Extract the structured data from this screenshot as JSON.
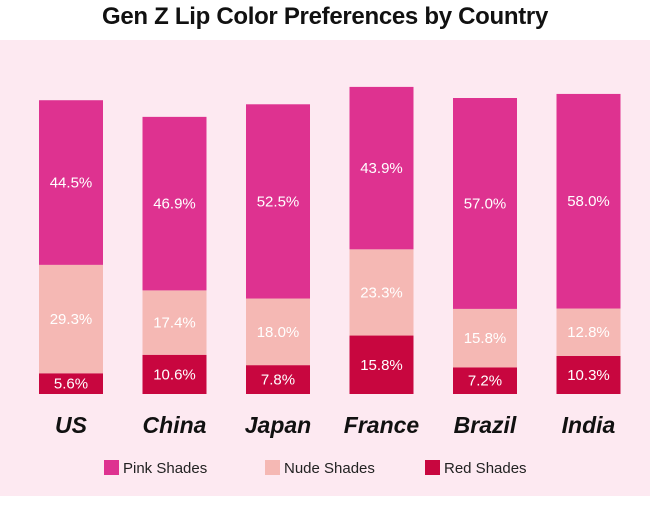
{
  "chart_data": {
    "type": "bar",
    "stacked": true,
    "title": "Gen Z  Lip Color Preferences by Country",
    "categories": [
      "US",
      "China",
      "Japan",
      "France",
      "Brazil",
      "India"
    ],
    "series": [
      {
        "name": "Red Shades",
        "values": [
          5.6,
          10.6,
          7.8,
          15.8,
          7.2,
          10.3
        ],
        "labels": [
          "5.6%",
          "10.6%",
          "7.8%",
          "15.8%",
          "7.2%",
          "10.3%"
        ],
        "color": "#c8063f",
        "label_color": "#ffffff"
      },
      {
        "name": "Nude Shades",
        "values": [
          29.3,
          17.4,
          18.0,
          23.3,
          15.8,
          12.8
        ],
        "labels": [
          "29.3%",
          "17.4%",
          "18.0%",
          "23.3%",
          "15.8%",
          "12.8%"
        ],
        "color": "#f5b8b4",
        "label_color": "#ffffff"
      },
      {
        "name": "Pink Shades",
        "values": [
          44.5,
          46.9,
          52.5,
          43.9,
          57.0,
          58.0
        ],
        "labels": [
          "44.5%",
          "46.9%",
          "52.5%",
          "43.9%",
          "57.0%",
          "58.0%"
        ],
        "color": "#de3290",
        "label_color": "#ffffff"
      }
    ],
    "legend": {
      "position": "bottom",
      "entries": [
        "Pink Shades",
        "Nude Shades",
        "Red Shades"
      ]
    },
    "ylim": [
      0,
      84
    ],
    "grid": false,
    "background": "#fde9f1"
  }
}
